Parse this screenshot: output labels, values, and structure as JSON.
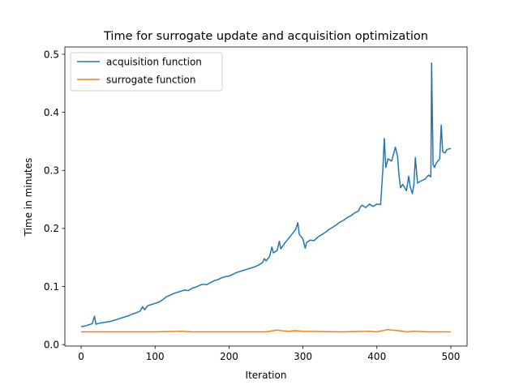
{
  "chart_data": {
    "type": "line",
    "title": "Time for surrogate update and acquisition optimization",
    "xlabel": "Iteration",
    "ylabel": "Time in minutes",
    "xlim": [
      -22,
      522
    ],
    "ylim": [
      -0.0025,
      0.5125
    ],
    "xticks": [
      0,
      100,
      200,
      300,
      400,
      500
    ],
    "yticks": [
      0.0,
      0.1,
      0.2,
      0.3,
      0.4,
      0.5
    ],
    "xtick_labels": [
      "0",
      "100",
      "200",
      "300",
      "400",
      "500"
    ],
    "ytick_labels": [
      "0.0",
      "0.1",
      "0.2",
      "0.3",
      "0.4",
      "0.5"
    ],
    "grid": false,
    "legend_position": "top-left",
    "series": [
      {
        "name": "acquisition function",
        "color": "#1f77b4",
        "points": [
          [
            0,
            0.031
          ],
          [
            5,
            0.032
          ],
          [
            10,
            0.034
          ],
          [
            15,
            0.036
          ],
          [
            18,
            0.049
          ],
          [
            20,
            0.035
          ],
          [
            25,
            0.037
          ],
          [
            30,
            0.038
          ],
          [
            35,
            0.039
          ],
          [
            40,
            0.04
          ],
          [
            45,
            0.042
          ],
          [
            50,
            0.044
          ],
          [
            55,
            0.046
          ],
          [
            60,
            0.048
          ],
          [
            65,
            0.05
          ],
          [
            70,
            0.053
          ],
          [
            75,
            0.055
          ],
          [
            80,
            0.058
          ],
          [
            83,
            0.065
          ],
          [
            86,
            0.06
          ],
          [
            90,
            0.067
          ],
          [
            95,
            0.069
          ],
          [
            100,
            0.071
          ],
          [
            105,
            0.073
          ],
          [
            110,
            0.077
          ],
          [
            115,
            0.082
          ],
          [
            120,
            0.085
          ],
          [
            125,
            0.088
          ],
          [
            130,
            0.09
          ],
          [
            135,
            0.092
          ],
          [
            140,
            0.094
          ],
          [
            145,
            0.093
          ],
          [
            150,
            0.097
          ],
          [
            155,
            0.099
          ],
          [
            160,
            0.102
          ],
          [
            165,
            0.104
          ],
          [
            170,
            0.103
          ],
          [
            175,
            0.107
          ],
          [
            180,
            0.11
          ],
          [
            185,
            0.112
          ],
          [
            190,
            0.115
          ],
          [
            195,
            0.117
          ],
          [
            200,
            0.118
          ],
          [
            205,
            0.121
          ],
          [
            210,
            0.124
          ],
          [
            215,
            0.126
          ],
          [
            220,
            0.128
          ],
          [
            225,
            0.13
          ],
          [
            230,
            0.132
          ],
          [
            235,
            0.134
          ],
          [
            240,
            0.137
          ],
          [
            245,
            0.141
          ],
          [
            248,
            0.148
          ],
          [
            250,
            0.144
          ],
          [
            255,
            0.152
          ],
          [
            258,
            0.168
          ],
          [
            260,
            0.158
          ],
          [
            265,
            0.162
          ],
          [
            268,
            0.178
          ],
          [
            270,
            0.165
          ],
          [
            275,
            0.174
          ],
          [
            280,
            0.182
          ],
          [
            285,
            0.19
          ],
          [
            290,
            0.198
          ],
          [
            293,
            0.21
          ],
          [
            295,
            0.19
          ],
          [
            300,
            0.182
          ],
          [
            303,
            0.166
          ],
          [
            305,
            0.176
          ],
          [
            310,
            0.18
          ],
          [
            315,
            0.179
          ],
          [
            320,
            0.185
          ],
          [
            325,
            0.189
          ],
          [
            330,
            0.193
          ],
          [
            335,
            0.198
          ],
          [
            340,
            0.202
          ],
          [
            345,
            0.206
          ],
          [
            350,
            0.211
          ],
          [
            355,
            0.214
          ],
          [
            360,
            0.219
          ],
          [
            365,
            0.222
          ],
          [
            370,
            0.227
          ],
          [
            375,
            0.23
          ],
          [
            378,
            0.238
          ],
          [
            380,
            0.24
          ],
          [
            385,
            0.236
          ],
          [
            390,
            0.242
          ],
          [
            395,
            0.238
          ],
          [
            400,
            0.242
          ],
          [
            405,
            0.241
          ],
          [
            408,
            0.3
          ],
          [
            410,
            0.355
          ],
          [
            412,
            0.305
          ],
          [
            415,
            0.32
          ],
          [
            420,
            0.316
          ],
          [
            425,
            0.34
          ],
          [
            428,
            0.324
          ],
          [
            430,
            0.29
          ],
          [
            432,
            0.27
          ],
          [
            435,
            0.276
          ],
          [
            440,
            0.265
          ],
          [
            443,
            0.29
          ],
          [
            445,
            0.272
          ],
          [
            448,
            0.26
          ],
          [
            450,
            0.275
          ],
          [
            452,
            0.322
          ],
          [
            455,
            0.278
          ],
          [
            460,
            0.282
          ],
          [
            465,
            0.285
          ],
          [
            470,
            0.292
          ],
          [
            473,
            0.289
          ],
          [
            474,
            0.485
          ],
          [
            476,
            0.31
          ],
          [
            478,
            0.305
          ],
          [
            480,
            0.312
          ],
          [
            485,
            0.32
          ],
          [
            487,
            0.378
          ],
          [
            489,
            0.332
          ],
          [
            492,
            0.33
          ],
          [
            495,
            0.336
          ],
          [
            500,
            0.338
          ]
        ]
      },
      {
        "name": "surrogate function",
        "color": "#ff7f0e",
        "points": [
          [
            0,
            0.022
          ],
          [
            50,
            0.022
          ],
          [
            100,
            0.022
          ],
          [
            135,
            0.023
          ],
          [
            150,
            0.022
          ],
          [
            200,
            0.022
          ],
          [
            250,
            0.022
          ],
          [
            255,
            0.023
          ],
          [
            265,
            0.025
          ],
          [
            270,
            0.024
          ],
          [
            280,
            0.023
          ],
          [
            290,
            0.024
          ],
          [
            300,
            0.023
          ],
          [
            350,
            0.022
          ],
          [
            390,
            0.023
          ],
          [
            400,
            0.022
          ],
          [
            408,
            0.024
          ],
          [
            415,
            0.026
          ],
          [
            420,
            0.025
          ],
          [
            430,
            0.024
          ],
          [
            440,
            0.022
          ],
          [
            450,
            0.023
          ],
          [
            470,
            0.022
          ],
          [
            500,
            0.022
          ]
        ]
      }
    ]
  }
}
